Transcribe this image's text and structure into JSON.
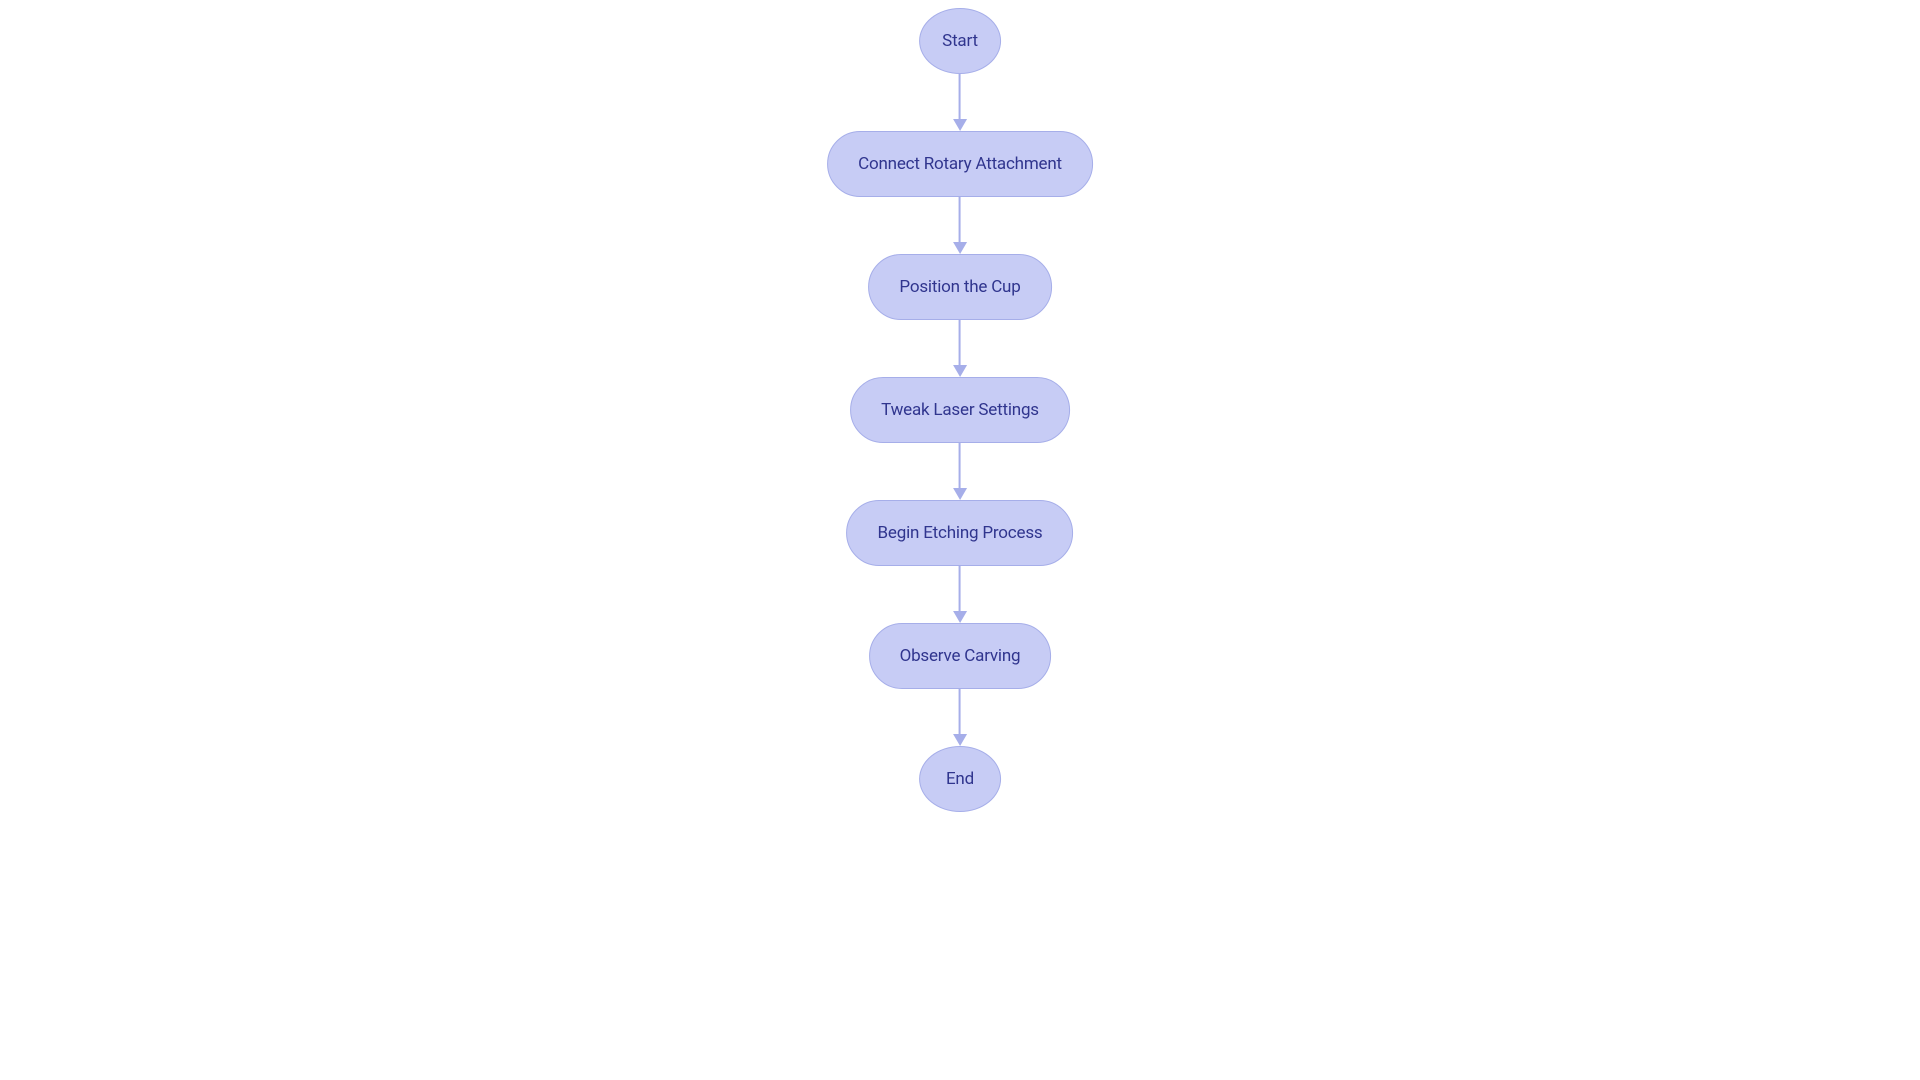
{
  "flowchart": {
    "type": "flowchart",
    "direction": "vertical",
    "background_color": "#ffffff",
    "node_fill": "#c7ccf5",
    "node_border": "#a6aee9",
    "node_border_width": 1,
    "text_color": "#30358e",
    "font_size": 17,
    "edge_color": "#a6aee9",
    "edge_width": 2,
    "arrow_size": 12,
    "vertical_gap": 57,
    "nodes": [
      {
        "id": "start",
        "label": "Start",
        "shape": "terminal"
      },
      {
        "id": "connect",
        "label": "Connect Rotary Attachment",
        "shape": "process"
      },
      {
        "id": "position",
        "label": "Position the Cup",
        "shape": "process"
      },
      {
        "id": "tweak",
        "label": "Tweak Laser Settings",
        "shape": "process"
      },
      {
        "id": "begin",
        "label": "Begin Etching Process",
        "shape": "process"
      },
      {
        "id": "observe",
        "label": "Observe Carving",
        "shape": "process"
      },
      {
        "id": "end",
        "label": "End",
        "shape": "terminal"
      }
    ],
    "edges": [
      {
        "from": "start",
        "to": "connect"
      },
      {
        "from": "connect",
        "to": "position"
      },
      {
        "from": "position",
        "to": "tweak"
      },
      {
        "from": "tweak",
        "to": "begin"
      },
      {
        "from": "begin",
        "to": "observe"
      },
      {
        "from": "observe",
        "to": "end"
      }
    ]
  }
}
